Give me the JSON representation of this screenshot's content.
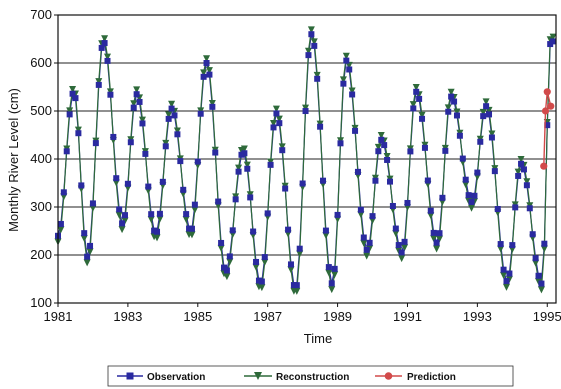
{
  "chart_data": {
    "type": "line",
    "title": "",
    "xlabel": "Time",
    "ylabel": "Monthly River Level (cm)",
    "xlim": [
      1981,
      1995.25
    ],
    "ylim": [
      100,
      700
    ],
    "x_ticks": [
      1981,
      1983,
      1985,
      1987,
      1989,
      1991,
      1993,
      1995
    ],
    "x_tick_labels": [
      "1981",
      "1983",
      "1985",
      "1987",
      "1989",
      "1991",
      "1993",
      "1995"
    ],
    "y_ticks": [
      100,
      200,
      300,
      400,
      500,
      600,
      700
    ],
    "y_tick_labels": [
      "100",
      "200",
      "300",
      "400",
      "500",
      "600",
      "700"
    ],
    "grid": "horizontal",
    "legend_position": "bottom",
    "observation_peaks": [
      {
        "x": 1981.45,
        "y": 540
      },
      {
        "x": 1982.3,
        "y": 645
      },
      {
        "x": 1983.25,
        "y": 535
      },
      {
        "x": 1984.25,
        "y": 505
      },
      {
        "x": 1985.25,
        "y": 600
      },
      {
        "x": 1986.3,
        "y": 415
      },
      {
        "x": 1987.25,
        "y": 495
      },
      {
        "x": 1988.25,
        "y": 660
      },
      {
        "x": 1989.25,
        "y": 605
      },
      {
        "x": 1990.25,
        "y": 440
      },
      {
        "x": 1991.25,
        "y": 540
      },
      {
        "x": 1992.25,
        "y": 530
      },
      {
        "x": 1993.25,
        "y": 510
      },
      {
        "x": 1994.25,
        "y": 390
      },
      {
        "x": 1995.1,
        "y": 645
      }
    ],
    "observation_troughs": [
      {
        "x": 1981.0,
        "y": 240
      },
      {
        "x": 1981.85,
        "y": 195
      },
      {
        "x": 1982.85,
        "y": 265
      },
      {
        "x": 1983.8,
        "y": 245
      },
      {
        "x": 1984.8,
        "y": 250
      },
      {
        "x": 1985.8,
        "y": 165
      },
      {
        "x": 1986.8,
        "y": 140
      },
      {
        "x": 1987.8,
        "y": 130
      },
      {
        "x": 1988.85,
        "y": 140
      },
      {
        "x": 1989.85,
        "y": 210
      },
      {
        "x": 1990.85,
        "y": 205
      },
      {
        "x": 1991.85,
        "y": 225
      },
      {
        "x": 1992.85,
        "y": 310
      },
      {
        "x": 1993.85,
        "y": 145
      },
      {
        "x": 1994.85,
        "y": 140
      }
    ],
    "reconstruction_offsets": {
      "peak_delta": 10,
      "trough_delta": -12
    },
    "prediction": [
      {
        "x": 1994.9,
        "y": 385
      },
      {
        "x": 1994.95,
        "y": 500
      },
      {
        "x": 1995.0,
        "y": 540
      },
      {
        "x": 1995.1,
        "y": 510
      }
    ],
    "series": [
      {
        "name": "Observation",
        "color": "#2a2aa0",
        "marker": "square"
      },
      {
        "name": "Reconstruction",
        "color": "#2e6a3a",
        "marker": "triangle-down"
      },
      {
        "name": "Prediction",
        "color": "#d24a4a",
        "marker": "circle"
      }
    ]
  }
}
